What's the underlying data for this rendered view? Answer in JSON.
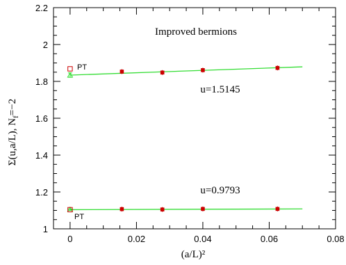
{
  "chart_data": {
    "type": "scatter",
    "title": "Improved bermions",
    "xlabel": "(a/L)²",
    "ylabel": "Σ(u,a/L), N_f=−2",
    "ylabel_parts": {
      "main": "Σ(u,a/L),  N",
      "sub": "f",
      "tail": "=−2"
    },
    "xlim": [
      -0.005,
      0.08
    ],
    "ylim": [
      1.0,
      2.2
    ],
    "x_ticks": [
      0,
      0.02,
      0.04,
      0.06,
      0.08
    ],
    "x_tick_labels": [
      "0",
      "0.02",
      "0.04",
      "0.06",
      "0.08"
    ],
    "y_ticks": [
      1,
      1.2,
      1.4,
      1.6,
      1.8,
      2,
      2.2
    ],
    "y_tick_labels": [
      "1",
      "1.2",
      "1.4",
      "1.6",
      "1.8",
      "2",
      "2.2"
    ],
    "colors": {
      "data": "#cc0000",
      "fit": "#33dd33",
      "extrapolation": "#33dd33",
      "pt": "#cc0000"
    },
    "series": [
      {
        "label": "u=1.5145",
        "points": [
          {
            "x": 0.0156,
            "y": 1.853
          },
          {
            "x": 0.0278,
            "y": 1.848
          },
          {
            "x": 0.04,
            "y": 1.861
          },
          {
            "x": 0.0625,
            "y": 1.873
          }
        ],
        "fit": {
          "x": [
            0,
            0.07
          ],
          "y": [
            1.834,
            1.879
          ]
        },
        "extrapolation": {
          "x": 0,
          "y": 1.834,
          "err": 0.012
        },
        "pt_value": {
          "x": 0,
          "y": 1.868,
          "label": "PT"
        }
      },
      {
        "label": "u=0.9793",
        "points": [
          {
            "x": 0.0156,
            "y": 1.107
          },
          {
            "x": 0.0278,
            "y": 1.105
          },
          {
            "x": 0.04,
            "y": 1.108
          },
          {
            "x": 0.0625,
            "y": 1.108
          }
        ],
        "fit": {
          "x": [
            0,
            0.07
          ],
          "y": [
            1.104,
            1.108
          ]
        },
        "extrapolation": {
          "x": 0,
          "y": 1.104,
          "err": 0.004
        },
        "pt_value": {
          "x": 0,
          "y": 1.104,
          "label": "PT"
        }
      }
    ]
  }
}
